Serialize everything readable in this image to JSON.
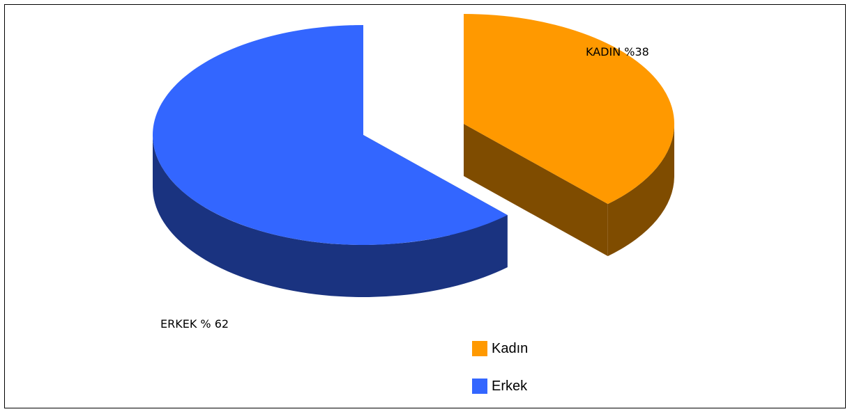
{
  "chart_data": {
    "type": "pie",
    "title": "",
    "slices": [
      {
        "name": "Kadın",
        "value": 38,
        "label": "KADIN %38",
        "color": "#ff9900",
        "side_color": "#7f4c00"
      },
      {
        "name": "Erkek",
        "value": 62,
        "label": "ERKEK % 62",
        "color": "#3366ff",
        "side_color": "#1a3380"
      }
    ],
    "legend": {
      "placement": "bottom-right",
      "entries": [
        "Kadın",
        "Erkek"
      ]
    },
    "exploded": [
      "Kadın"
    ],
    "style": "3d"
  }
}
